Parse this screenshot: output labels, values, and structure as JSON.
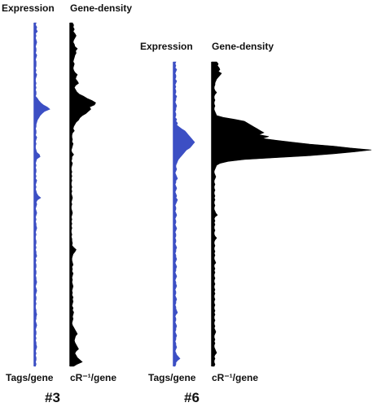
{
  "colors": {
    "expression": "#3c4fc4",
    "density": "#000000"
  },
  "chart_data": [
    {
      "type": "area",
      "chromosome_label": "#3",
      "orientation": "vertical",
      "panels": [
        {
          "title": "Expression",
          "xlabel": "Tags/gene",
          "series": [
            {
              "name": "",
              "values": [
                3,
                2,
                4,
                3,
                5,
                2,
                3,
                2,
                3,
                4,
                3,
                2,
                3,
                3,
                2,
                4,
                3,
                2,
                3,
                3,
                3,
                2,
                3,
                2,
                4,
                3,
                2,
                2,
                3,
                2,
                3,
                2,
                3,
                3,
                2,
                5,
                7,
                10,
                14,
                20,
                24,
                16,
                12,
                9,
                7,
                5,
                4,
                3,
                3,
                2,
                3,
                3,
                2,
                4,
                3,
                2,
                3,
                2,
                2,
                3,
                4,
                8,
                9,
                4,
                3,
                2,
                3,
                2,
                3,
                3,
                2,
                3,
                2,
                4,
                3,
                2,
                3,
                2,
                3,
                4,
                6,
                10,
                5,
                3,
                4,
                3,
                2,
                3,
                4,
                3,
                2,
                3,
                2,
                3,
                3,
                4,
                3,
                2,
                3,
                2,
                2,
                3,
                3,
                2,
                3,
                2,
                3,
                3,
                4,
                2,
                3,
                2,
                3,
                3,
                2,
                3,
                3,
                2,
                3,
                3,
                4,
                3,
                2,
                3,
                4,
                3,
                2,
                3,
                3,
                2,
                3,
                2,
                2,
                3,
                3,
                4,
                3,
                3,
                2,
                3,
                4,
                3,
                2,
                3,
                3,
                2,
                3,
                2,
                3,
                3,
                4,
                3,
                2,
                3,
                2,
                3,
                3,
                2,
                3,
                2
              ]
            }
          ]
        },
        {
          "title": "Gene-density",
          "xlabel": "cR⁻¹/gene",
          "series": [
            {
              "name": "",
              "values": [
                4,
                6,
                5,
                7,
                5,
                8,
                10,
                8,
                6,
                5,
                7,
                8,
                12,
                9,
                10,
                8,
                7,
                6,
                5,
                7,
                6,
                5,
                6,
                8,
                12,
                10,
                9,
                12,
                14,
                9,
                7,
                9,
                11,
                15,
                22,
                28,
                36,
                42,
                40,
                32,
                34,
                30,
                26,
                20,
                16,
                14,
                10,
                8,
                6,
                5,
                7,
                4,
                3,
                3,
                4,
                3,
                5,
                4,
                3,
                2,
                3,
                6,
                3,
                3,
                2,
                4,
                3,
                2,
                2,
                3,
                2,
                3,
                2,
                3,
                2,
                2,
                3,
                2,
                3,
                2,
                3,
                4,
                3,
                2,
                3,
                2,
                2,
                3,
                4,
                3,
                2,
                3,
                2,
                3,
                2,
                3,
                2,
                2,
                3,
                2,
                3,
                3,
                4,
                3,
                6,
                10,
                8,
                5,
                4,
                3,
                3,
                4,
                5,
                3,
                4,
                3,
                5,
                4,
                3,
                4,
                3,
                4,
                5,
                4,
                3,
                4,
                3,
                5,
                4,
                5,
                4,
                3,
                5,
                4,
                6,
                5,
                4,
                5,
                4,
                3,
                4,
                6,
                8,
                10,
                12,
                9,
                8,
                7,
                8,
                10,
                12,
                14,
                10,
                8,
                10,
                12,
                16,
                20,
                12,
                6
              ]
            }
          ]
        }
      ]
    },
    {
      "type": "area",
      "chromosome_label": "#6",
      "orientation": "vertical",
      "panels": [
        {
          "title": "Expression",
          "xlabel": "Tags/gene",
          "series": [
            {
              "name": "",
              "values": [
                3,
                2,
                3,
                2,
                4,
                3,
                2,
                3,
                3,
                2,
                4,
                3,
                2,
                3,
                2,
                3,
                3,
                2,
                4,
                3,
                3,
                2,
                3,
                4,
                3,
                3,
                2,
                3,
                3,
                2,
                4,
                3,
                5,
                4,
                7,
                10,
                14,
                16,
                18,
                20,
                22,
                24,
                26,
                24,
                22,
                20,
                16,
                14,
                12,
                10,
                8,
                6,
                5,
                4,
                3,
                3,
                4,
                3,
                2,
                3,
                4,
                5,
                3,
                3,
                2,
                3,
                4,
                3,
                2,
                3,
                4,
                3,
                5,
                4,
                3,
                2,
                3,
                3,
                2,
                3,
                4,
                3,
                2,
                3,
                3,
                2,
                3,
                4,
                3,
                2,
                3,
                3,
                2,
                3,
                3,
                2,
                3,
                4,
                3,
                3,
                2,
                3,
                3,
                4,
                3,
                2,
                3,
                4,
                3,
                3,
                2,
                3,
                4,
                3,
                2,
                3,
                3,
                4,
                3,
                2,
                3,
                3,
                2,
                3,
                4,
                3,
                3,
                2,
                3,
                3,
                4,
                5,
                3,
                2,
                3,
                3,
                2,
                3,
                4,
                3,
                3,
                2,
                3,
                4,
                3,
                3,
                2,
                3,
                3,
                4,
                3,
                2,
                3,
                4,
                6,
                8,
                5,
                3,
                3,
                2
              ]
            }
          ]
        },
        {
          "title": "Gene-density",
          "xlabel": "cR⁻¹/gene",
          "series": [
            {
              "name": "",
              "values": [
                6,
                8,
                7,
                9,
                10,
                8,
                12,
                10,
                8,
                6,
                5,
                4,
                4,
                3,
                3,
                4,
                6,
                4,
                3,
                3,
                4,
                3,
                3,
                4,
                3,
                3,
                4,
                5,
                6,
                14,
                28,
                40,
                44,
                48,
                52,
                56,
                60,
                64,
                58,
                70,
                62,
                80,
                100,
                120,
                150,
                170,
                196,
                175,
                150,
                120,
                80,
                40,
                20,
                10,
                6,
                5,
                4,
                3,
                3,
                4,
                5,
                4,
                3,
                3,
                4,
                3,
                3,
                4,
                3,
                3,
                4,
                3,
                4,
                3,
                3,
                4,
                3,
                3,
                4,
                5,
                7,
                4,
                3,
                4,
                3,
                4,
                3,
                3,
                4,
                3,
                3,
                4,
                6,
                4,
                3,
                3,
                4,
                3,
                3,
                4,
                3,
                4,
                3,
                3,
                4,
                5,
                3,
                3,
                4,
                3,
                4,
                3,
                3,
                4,
                3,
                3,
                4,
                3,
                3,
                4,
                3,
                4,
                3,
                3,
                4,
                3,
                3,
                4,
                3,
                3,
                4,
                3,
                4,
                3,
                3,
                4,
                3,
                3,
                4,
                3,
                4,
                5,
                4,
                3,
                3,
                4,
                3,
                4,
                3,
                3,
                4,
                5,
                6,
                4,
                3,
                4,
                3,
                3,
                4,
                3
              ]
            }
          ]
        }
      ]
    }
  ]
}
